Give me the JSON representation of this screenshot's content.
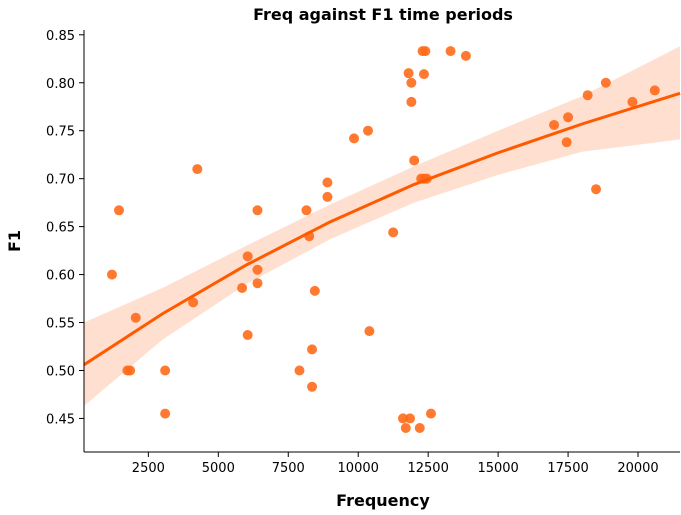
{
  "chart_data": {
    "type": "scatter",
    "title": "Freq against F1 time periods",
    "xlabel": "Frequency",
    "ylabel": "F1",
    "xlim": [
      200,
      21500
    ],
    "ylim": [
      0.415,
      0.855
    ],
    "xticks": [
      2500,
      5000,
      7500,
      10000,
      12500,
      15000,
      17500,
      20000
    ],
    "yticks": [
      0.45,
      0.5,
      0.55,
      0.6,
      0.65,
      0.7,
      0.75,
      0.8,
      0.85
    ],
    "grid": false,
    "colors": {
      "points": "#ff6a1a",
      "line": "#ff5a00",
      "band": "#ffd9c7"
    },
    "points": [
      [
        1200,
        0.6
      ],
      [
        1450,
        0.667
      ],
      [
        1750,
        0.5
      ],
      [
        1850,
        0.5
      ],
      [
        2050,
        0.555
      ],
      [
        3100,
        0.455
      ],
      [
        3100,
        0.5
      ],
      [
        4100,
        0.571
      ],
      [
        4250,
        0.71
      ],
      [
        5850,
        0.586
      ],
      [
        6050,
        0.537
      ],
      [
        6050,
        0.619
      ],
      [
        6400,
        0.591
      ],
      [
        6400,
        0.605
      ],
      [
        6400,
        0.667
      ],
      [
        7900,
        0.5
      ],
      [
        8150,
        0.667
      ],
      [
        8250,
        0.64
      ],
      [
        8350,
        0.483
      ],
      [
        8350,
        0.522
      ],
      [
        8450,
        0.583
      ],
      [
        8900,
        0.681
      ],
      [
        8900,
        0.696
      ],
      [
        9850,
        0.742
      ],
      [
        10350,
        0.75
      ],
      [
        10400,
        0.541
      ],
      [
        11250,
        0.644
      ],
      [
        11600,
        0.45
      ],
      [
        11700,
        0.44
      ],
      [
        11800,
        0.81
      ],
      [
        11850,
        0.45
      ],
      [
        11900,
        0.78
      ],
      [
        11900,
        0.8
      ],
      [
        12000,
        0.719
      ],
      [
        12200,
        0.44
      ],
      [
        12250,
        0.7
      ],
      [
        12300,
        0.833
      ],
      [
        12350,
        0.7
      ],
      [
        12350,
        0.809
      ],
      [
        12400,
        0.833
      ],
      [
        12450,
        0.7
      ],
      [
        12600,
        0.455
      ],
      [
        13300,
        0.833
      ],
      [
        13850,
        0.828
      ],
      [
        17000,
        0.756
      ],
      [
        17450,
        0.738
      ],
      [
        17500,
        0.764
      ],
      [
        18200,
        0.787
      ],
      [
        18500,
        0.689
      ],
      [
        18850,
        0.8
      ],
      [
        19800,
        0.78
      ],
      [
        20600,
        0.792
      ]
    ],
    "fit": {
      "x": [
        200,
        3000,
        6000,
        9000,
        12000,
        15000,
        18000,
        21500
      ],
      "y": [
        0.506,
        0.559,
        0.61,
        0.655,
        0.694,
        0.727,
        0.757,
        0.789
      ],
      "lower": [
        0.463,
        0.532,
        0.59,
        0.637,
        0.675,
        0.704,
        0.728,
        0.741
      ],
      "upper": [
        0.55,
        0.586,
        0.63,
        0.673,
        0.713,
        0.75,
        0.786,
        0.838
      ]
    }
  }
}
